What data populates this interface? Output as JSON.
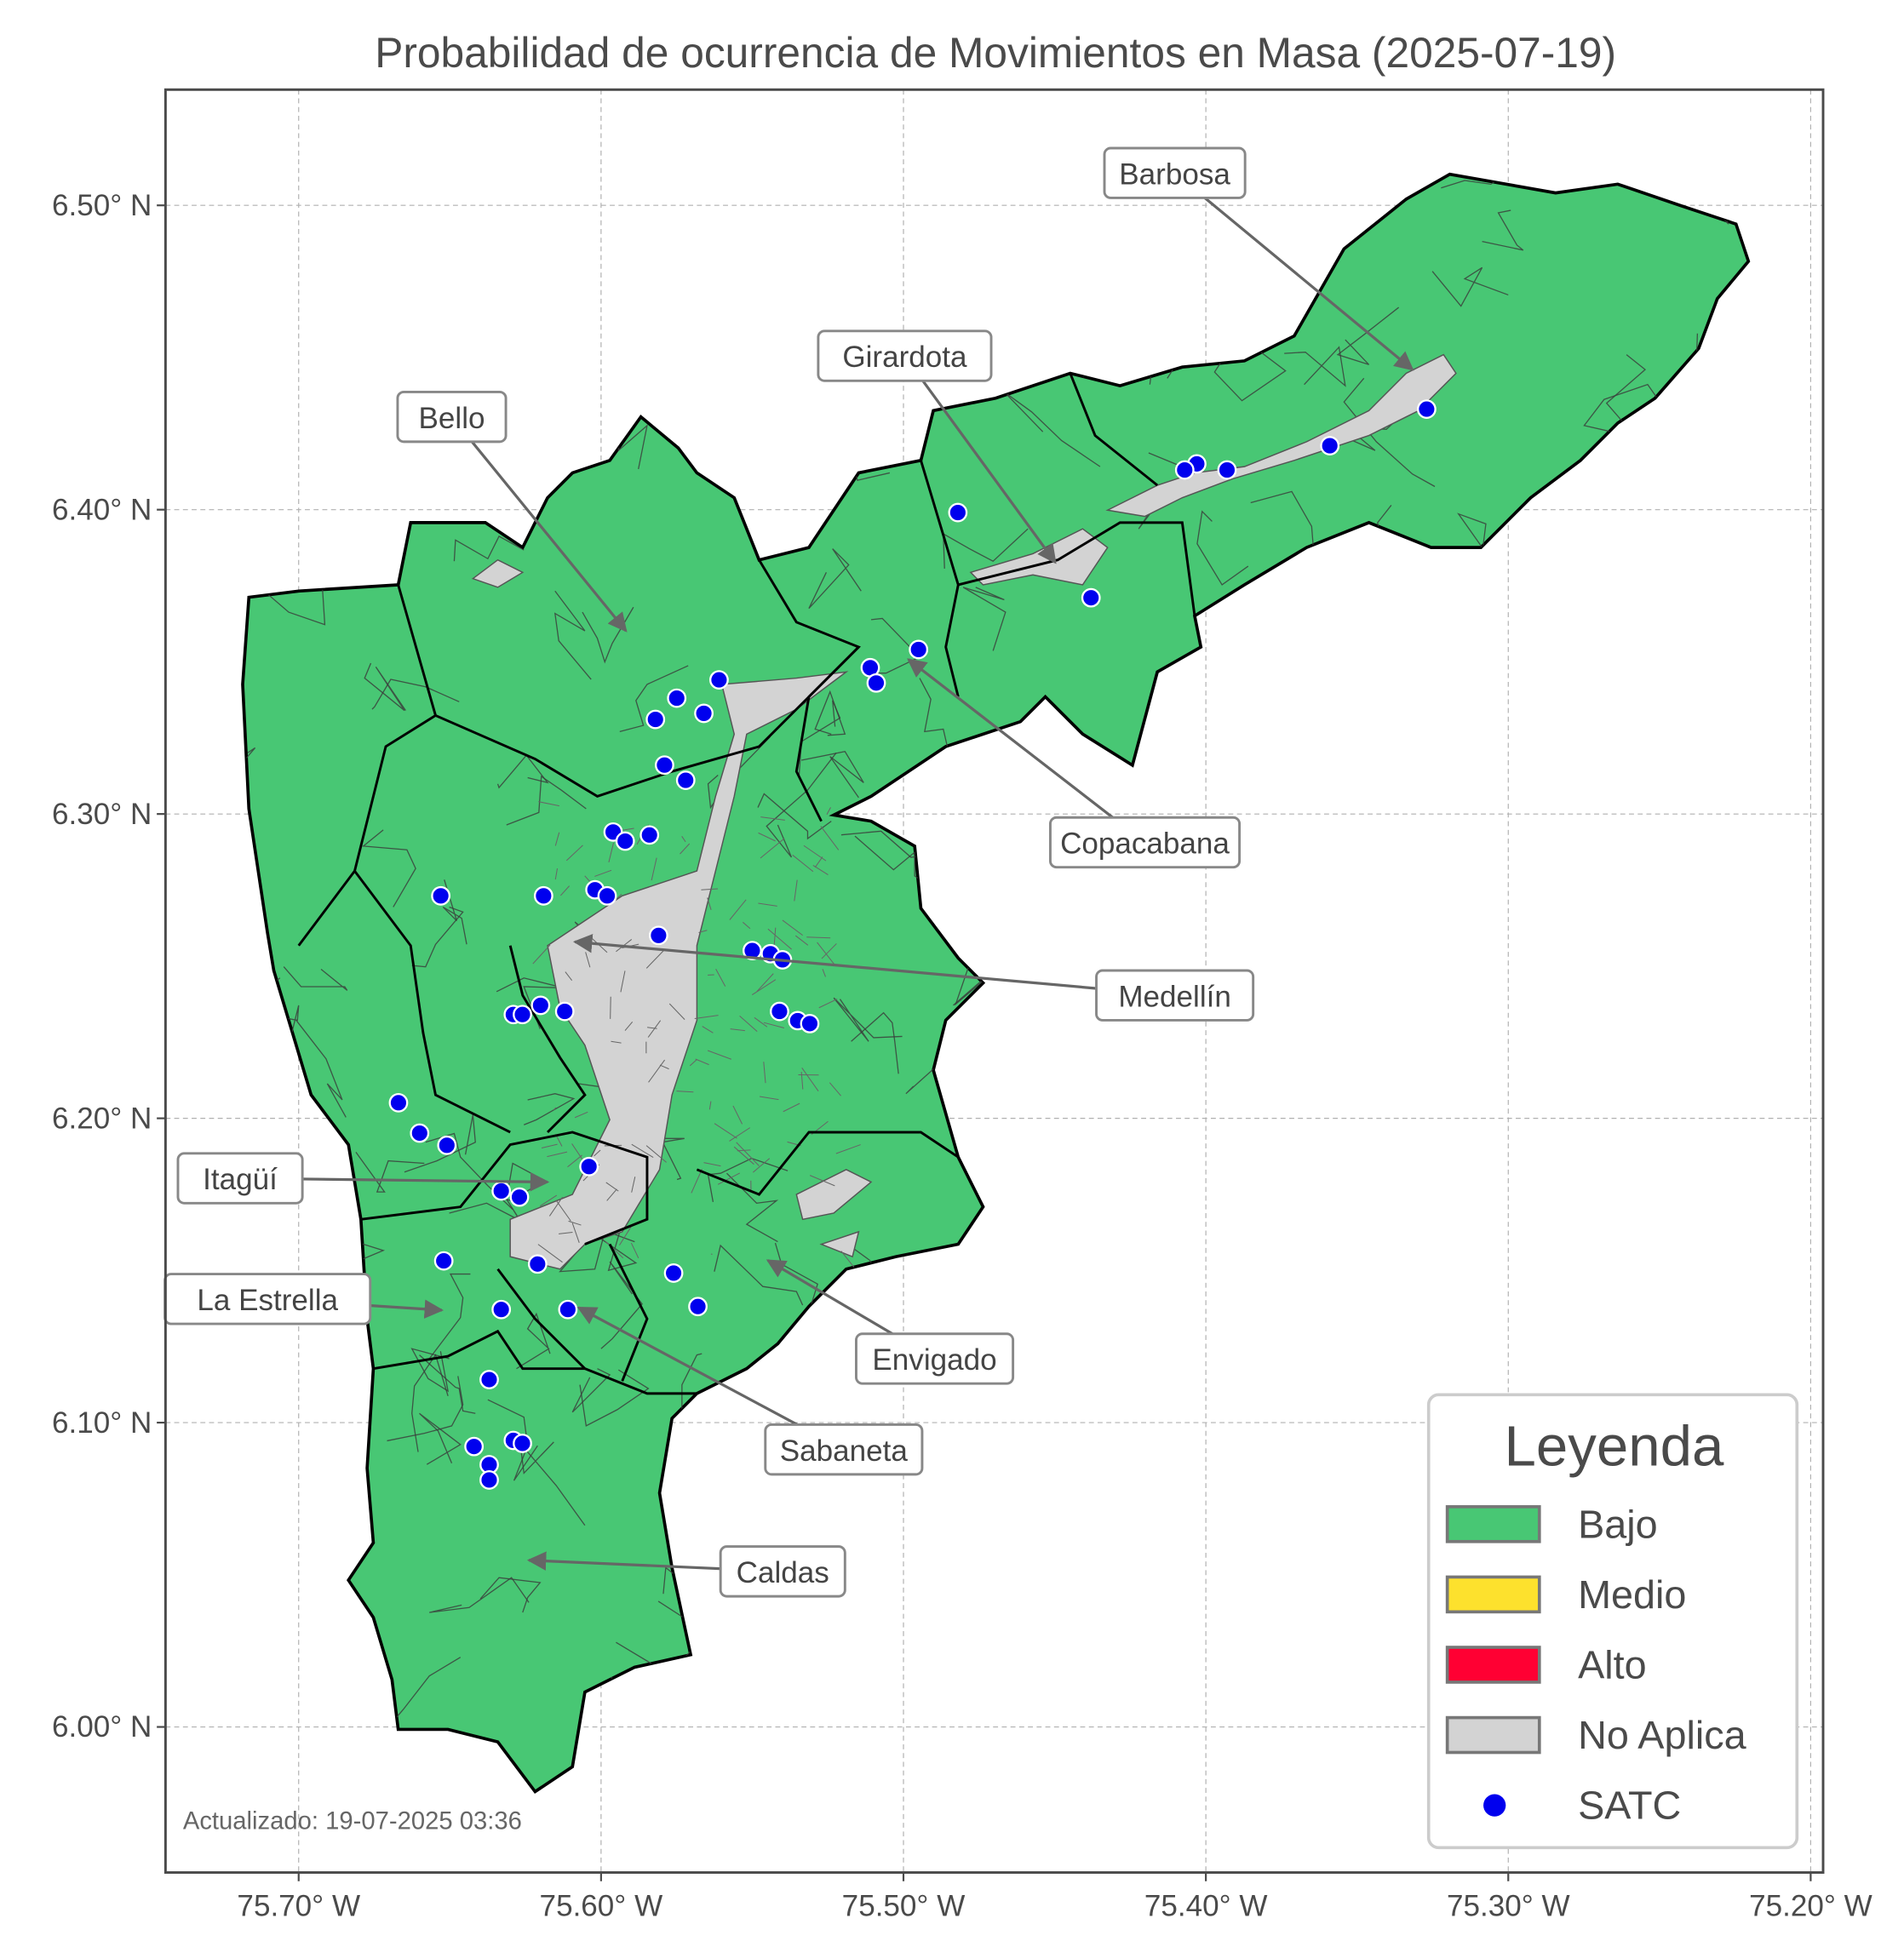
{
  "title": "Probabilidad de ocurrencia de Movimientos en Masa (2025-07-19)",
  "footer": "Actualizado: 19-07-2025 03:36",
  "axes": {
    "x_ticks": [
      "75.70° W",
      "75.60° W",
      "75.50° W",
      "75.40° W",
      "75.30° W",
      "75.20° W"
    ],
    "y_ticks": [
      "6.50° N",
      "6.40° N",
      "6.30° N",
      "6.20° N",
      "6.10° N",
      "6.00° N"
    ],
    "x_range_lon": [
      -75.744,
      -75.196
    ],
    "y_range_lat": [
      5.953,
      6.539
    ],
    "grid": true
  },
  "legend": {
    "title": "Leyenda",
    "placement": "lower-right",
    "items": [
      {
        "label": "Bajo",
        "color": "#48c774",
        "kind": "patch"
      },
      {
        "label": "Medio",
        "color": "#fde12d",
        "kind": "patch"
      },
      {
        "label": "Alto",
        "color": "#ff0033",
        "kind": "patch"
      },
      {
        "label": "No Aplica",
        "color": "#d3d3d3",
        "kind": "patch"
      },
      {
        "label": "SATC",
        "color": "#0000ee",
        "kind": "point"
      }
    ]
  },
  "colors": {
    "bajo": "#48c774",
    "no_aplica": "#d3d3d3",
    "satc": "#0000ee",
    "boundary": "#000000",
    "vereda": "#3a3a3a"
  },
  "annotations": [
    "Barbosa",
    "Girardota",
    "Bello",
    "Copacabana",
    "Medellín",
    "Itagüí",
    "La Estrella",
    "Envigado",
    "Sabaneta",
    "Caldas"
  ],
  "satc_points": [
    [
      -75.327,
      6.433
    ],
    [
      -75.359,
      6.421
    ],
    [
      -75.393,
      6.413
    ],
    [
      -75.403,
      6.415
    ],
    [
      -75.407,
      6.413
    ],
    [
      -75.482,
      6.399
    ],
    [
      -75.438,
      6.371
    ],
    [
      -75.495,
      6.354
    ],
    [
      -75.511,
      6.348
    ],
    [
      -75.509,
      6.343
    ],
    [
      -75.561,
      6.344
    ],
    [
      -75.575,
      6.338
    ],
    [
      -75.566,
      6.333
    ],
    [
      -75.582,
      6.331
    ],
    [
      -75.579,
      6.316
    ],
    [
      -75.572,
      6.311
    ],
    [
      -75.596,
      6.294
    ],
    [
      -75.592,
      6.291
    ],
    [
      -75.584,
      6.293
    ],
    [
      -75.653,
      6.273
    ],
    [
      -75.619,
      6.273
    ],
    [
      -75.602,
      6.275
    ],
    [
      -75.598,
      6.273
    ],
    [
      -75.581,
      6.26
    ],
    [
      -75.55,
      6.255
    ],
    [
      -75.544,
      6.254
    ],
    [
      -75.54,
      6.252
    ],
    [
      -75.62,
      6.237
    ],
    [
      -75.629,
      6.234
    ],
    [
      -75.626,
      6.234
    ],
    [
      -75.612,
      6.235
    ],
    [
      -75.541,
      6.235
    ],
    [
      -75.535,
      6.232
    ],
    [
      -75.531,
      6.231
    ],
    [
      -75.667,
      6.205
    ],
    [
      -75.66,
      6.195
    ],
    [
      -75.651,
      6.191
    ],
    [
      -75.604,
      6.184
    ],
    [
      -75.633,
      6.176
    ],
    [
      -75.627,
      6.174
    ],
    [
      -75.652,
      6.153
    ],
    [
      -75.621,
      6.152
    ],
    [
      -75.576,
      6.149
    ],
    [
      -75.568,
      6.138
    ],
    [
      -75.633,
      6.137
    ],
    [
      -75.611,
      6.137
    ],
    [
      -75.637,
      6.114
    ],
    [
      -75.642,
      6.092
    ],
    [
      -75.629,
      6.094
    ],
    [
      -75.626,
      6.093
    ],
    [
      -75.637,
      6.086
    ],
    [
      -75.637,
      6.081
    ]
  ]
}
